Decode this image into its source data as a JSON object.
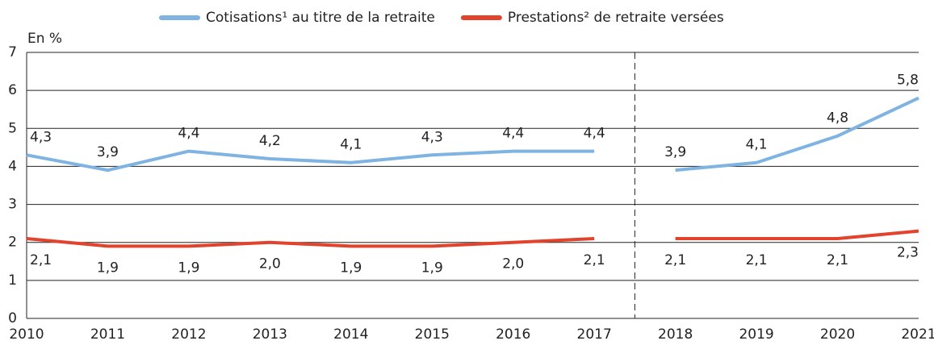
{
  "chart_data": {
    "type": "line",
    "y_axis_label": "En %",
    "categories": [
      "2010",
      "2011",
      "2012",
      "2013",
      "2014",
      "2015",
      "2016",
      "2017",
      "2018",
      "2019",
      "2020",
      "2021"
    ],
    "break_after": "2017",
    "series": [
      {
        "name": "Cotisations¹ au titre de la retraite",
        "color": "#7fb3e2",
        "values": [
          4.3,
          3.9,
          4.4,
          4.2,
          4.1,
          4.3,
          4.4,
          4.4,
          3.9,
          4.1,
          4.8,
          5.8
        ],
        "value_labels": [
          "4,3",
          "3,9",
          "4,4",
          "4,2",
          "4,1",
          "4,3",
          "4,4",
          "4,4",
          "3,9",
          "4,1",
          "4,8",
          "5,8"
        ]
      },
      {
        "name": "Prestations² de retraite versées",
        "color": "#e2432d",
        "values": [
          2.1,
          1.9,
          1.9,
          2.0,
          1.9,
          1.9,
          2.0,
          2.1,
          2.1,
          2.1,
          2.1,
          2.3
        ],
        "value_labels": [
          "2,1",
          "1,9",
          "1,9",
          "2,0",
          "1,9",
          "1,9",
          "2,0",
          "2,1",
          "2,1",
          "2,1",
          "2,1",
          "2,3"
        ]
      }
    ],
    "ylim": [
      0,
      7
    ],
    "yticks": [
      0,
      1,
      2,
      3,
      4,
      5,
      6,
      7
    ],
    "grid": true
  }
}
